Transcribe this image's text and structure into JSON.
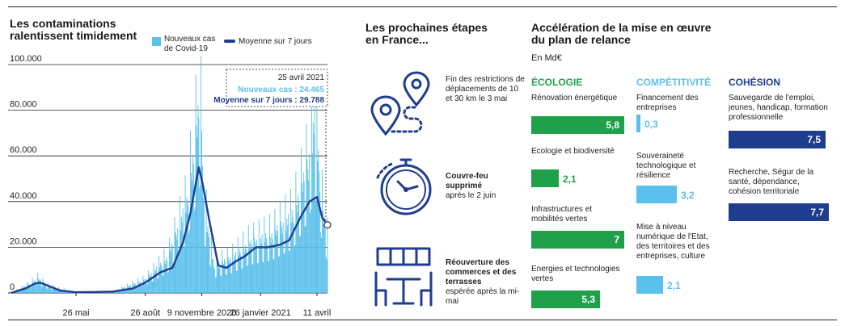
{
  "section1": {
    "title": "Les contaminations ralentissent timidement",
    "legend_cases": "Nouveaux cas de Covid-19",
    "legend_avg": "Moyenne sur 7 jours",
    "tooltip": {
      "date": "25 avril 2021",
      "cases": "Nouveaux cas : 24.465",
      "avg": "Moyenne sur 7 jours : 29.788"
    }
  },
  "section2": {
    "title": "Les prochaines étapes en France...",
    "steps": [
      {
        "icon": "map-route-icon",
        "text": "Fin des restrictions de déplacements de 10 et 30 km le 3 mai"
      },
      {
        "icon": "stopwatch-icon",
        "bold": "Couvre-feu supprimé",
        "text": "après le 2 juin"
      },
      {
        "icon": "terrace-icon",
        "bold": "Réouverture des commerces et des terrasses",
        "text": "espérée après la mi-mai"
      }
    ]
  },
  "section3": {
    "title": "Accélération de la mise en œuvre du plan de relance",
    "unit": "En Md€",
    "colors": {
      "ecologie": "#1fa04a",
      "competitivite": "#5bc0eb",
      "cohesion": "#1f3d8f"
    },
    "columns": [
      {
        "name": "ÉCOLOGIE",
        "items": [
          {
            "label": "Rénovation énergétique",
            "value": "5,8"
          },
          {
            "label": "Ecologie et biodiversité",
            "value": "2,1"
          },
          {
            "label": "Infrastructures et mobilités vertes",
            "value": "7"
          },
          {
            "label": "Energies et technologies vertes",
            "value": "5,3"
          }
        ]
      },
      {
        "name": "COMPÉTITIVITÉ",
        "items": [
          {
            "label": "Financement des entreprises",
            "value": "0,3"
          },
          {
            "label": "Souveraineté technologique et résilience",
            "value": "3,2"
          },
          {
            "label": "Mise à niveau numérique de l'Etat, des territoires et des entreprises, culture",
            "value": "2,1"
          }
        ]
      },
      {
        "name": "COHÉSION",
        "items": [
          {
            "label": "Sauvegarde de l'emploi, jeunes, handicap, formation professionnelle",
            "value": "7,5"
          },
          {
            "label": "Recherche, Ségur de la santé, dépendance, cohésion territoriale",
            "value": "7,7"
          }
        ]
      }
    ]
  },
  "chart_data": {
    "type": "area",
    "title": "Les contaminations ralentissent timidement",
    "ylim": [
      0,
      100000
    ],
    "yticks": [
      "0",
      "20.000",
      "40.000",
      "60.000",
      "80.000",
      "100.000"
    ],
    "ytick_values": [
      0,
      20000,
      40000,
      60000,
      80000,
      100000
    ],
    "xtick_labels": [
      "26 mai",
      "26 août",
      "9 novembre 2020",
      "26 janvier 2021",
      "11 avril"
    ],
    "xtick_dates": [
      "2020-05-26",
      "2020-08-26",
      "2020-11-09",
      "2021-01-26",
      "2021-04-11"
    ],
    "x_range": [
      "2020-03-01",
      "2021-04-25"
    ],
    "series": [
      {
        "name": "Moyenne sur 7 jours",
        "color": "#1f3d8f",
        "points": [
          [
            "2020-03-01",
            0
          ],
          [
            "2020-03-20",
            2000
          ],
          [
            "2020-04-01",
            4000
          ],
          [
            "2020-04-08",
            4500
          ],
          [
            "2020-04-20",
            3000
          ],
          [
            "2020-05-05",
            1000
          ],
          [
            "2020-05-26",
            300
          ],
          [
            "2020-06-20",
            400
          ],
          [
            "2020-07-15",
            600
          ],
          [
            "2020-08-10",
            2000
          ],
          [
            "2020-08-26",
            4500
          ],
          [
            "2020-09-15",
            9000
          ],
          [
            "2020-10-01",
            11000
          ],
          [
            "2020-10-15",
            22000
          ],
          [
            "2020-10-25",
            35000
          ],
          [
            "2020-11-01",
            48000
          ],
          [
            "2020-11-05",
            55000
          ],
          [
            "2020-11-10",
            48000
          ],
          [
            "2020-11-20",
            30000
          ],
          [
            "2020-12-01",
            12000
          ],
          [
            "2020-12-12",
            11000
          ],
          [
            "2020-12-25",
            14000
          ],
          [
            "2021-01-05",
            16000
          ],
          [
            "2021-01-20",
            20000
          ],
          [
            "2021-02-05",
            20000
          ],
          [
            "2021-02-20",
            21000
          ],
          [
            "2021-03-05",
            23000
          ],
          [
            "2021-03-20",
            33000
          ],
          [
            "2021-04-01",
            40000
          ],
          [
            "2021-04-11",
            42000
          ],
          [
            "2021-04-18",
            33000
          ],
          [
            "2021-04-25",
            29788
          ]
        ]
      },
      {
        "name": "Nouveaux cas de Covid-19",
        "color": "#5bc0eb",
        "points": [
          [
            "2020-03-01",
            0
          ],
          [
            "2020-03-25",
            4000
          ],
          [
            "2020-04-05",
            6500
          ],
          [
            "2020-04-20",
            3000
          ],
          [
            "2020-05-26",
            300
          ],
          [
            "2020-07-15",
            700
          ],
          [
            "2020-08-26",
            6000
          ],
          [
            "2020-09-25",
            16000
          ],
          [
            "2020-10-20",
            40000
          ],
          [
            "2020-11-07",
            86000
          ],
          [
            "2020-11-12",
            40000
          ],
          [
            "2020-11-25",
            12000
          ],
          [
            "2020-12-20",
            16000
          ],
          [
            "2021-01-10",
            22000
          ],
          [
            "2021-02-10",
            26000
          ],
          [
            "2021-03-10",
            35000
          ],
          [
            "2021-03-31",
            58000
          ],
          [
            "2021-04-08",
            80000
          ],
          [
            "2021-04-18",
            40000
          ],
          [
            "2021-04-25",
            24465
          ]
        ]
      }
    ],
    "annotation": {
      "date": "2021-04-25",
      "cases": 24465,
      "avg": 29788
    }
  }
}
